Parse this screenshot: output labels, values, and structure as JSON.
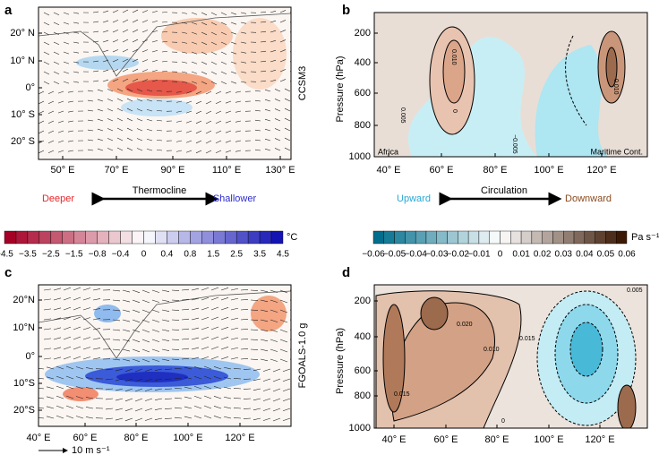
{
  "panels": [
    {
      "label": "a",
      "model": "CCSM3",
      "yticks": [
        "20° N",
        "10° N",
        "0°",
        "10° S",
        "20° S"
      ],
      "xticks": [
        "50° E",
        "70° E",
        "90° E",
        "110° E",
        "130° E"
      ]
    },
    {
      "label": "b",
      "ylabel": "Pressure (hPa)",
      "yticks": [
        "200",
        "400",
        "600",
        "800",
        "1000"
      ],
      "xticks": [
        "40° E",
        "60° E",
        "80° E",
        "100° E",
        "120° E"
      ],
      "annotations": [
        "Africa",
        "Maritime Cont."
      ],
      "contour_labels": [
        "0.010",
        "0.005",
        "0",
        "−0.005",
        "0.010"
      ]
    },
    {
      "label": "c",
      "model": "FGOALS-1.0 g",
      "yticks": [
        "20°N",
        "10°N",
        "0°",
        "10°S",
        "20°S"
      ],
      "xticks": [
        "40° E",
        "60° E",
        "80° E",
        "100° E",
        "120° E"
      ],
      "vector_key": "10 m s⁻¹"
    },
    {
      "label": "d",
      "ylabel": "Pressure (hPa)",
      "yticks": [
        "200",
        "400",
        "600",
        "800",
        "1000"
      ],
      "xticks": [
        "40° E",
        "60° E",
        "80° E",
        "100° E",
        "120° E"
      ],
      "contour_labels": [
        "0.005",
        "0.020",
        "0.015",
        "0.010",
        "0.015",
        "0"
      ]
    }
  ],
  "colorbars": [
    {
      "title": "Thermocline",
      "left": "Deeper",
      "right": "Shallower",
      "unit": "°C",
      "ticks": [
        "−4.5",
        "−3.5",
        "−2.5",
        "−1.5",
        "−0.8",
        "−0.4",
        "0",
        "0.4",
        "0.8",
        "1.5",
        "2.5",
        "3.5",
        "4.5"
      ]
    },
    {
      "title": "Circulation",
      "left": "Upward",
      "right": "Downward",
      "unit": "Pa s⁻¹",
      "ticks": [
        "−0.06",
        "−0.05",
        "−0.04",
        "−0.03",
        "−0.02",
        "−0.01",
        "0",
        "0.01",
        "0.02",
        "0.03",
        "0.04",
        "0.05",
        "0.06"
      ]
    }
  ]
}
